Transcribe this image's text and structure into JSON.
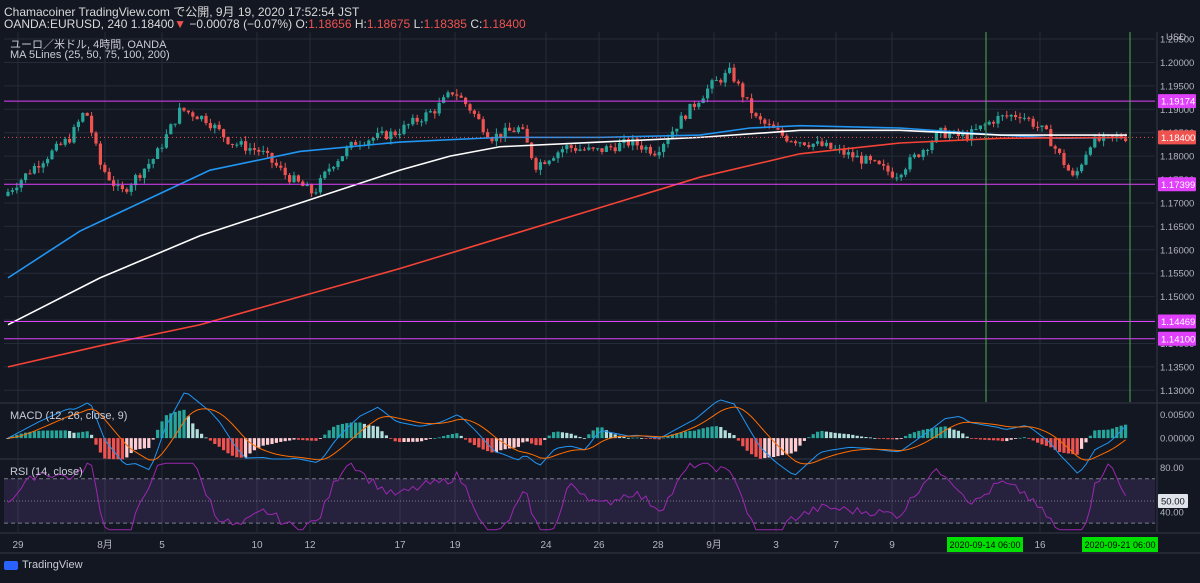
{
  "header": {
    "line1": "Chamacoiner TradingView.com で公開, 9月 19, 2020 17:52:54 JST",
    "symbol": "OANDA:EURUSD, 240",
    "last": "1.18400",
    "change": "−0.00078 (−0.07%)",
    "o_label": "O:",
    "o_value": "1.18656",
    "h_label": "H:",
    "h_value": "1.18675",
    "l_label": "L:",
    "l_value": "1.18385",
    "c_label": "C:",
    "c_value": "1.18400"
  },
  "legend": {
    "pair": "ユーロ／米ドル, 4時間, OANDA",
    "ma": "MA 5Lines (25, 50, 75, 100, 200)"
  },
  "macd": {
    "label": "MACD (12, 26, close, 9)"
  },
  "rsi": {
    "label": "RSI (14, close)"
  },
  "footer": {
    "brand": "TradingView"
  },
  "colors": {
    "background": "#131722",
    "grid": "#262b3a",
    "candle_up": "#26a69a",
    "candle_down": "#ef5350",
    "ma25": "#2196f3",
    "ma100": "#ffffff",
    "ma200": "#f44336",
    "hline": "#e040fb",
    "vline": "#4caf50",
    "rsi": "#9c27b0",
    "price_tag": "#e040fb"
  },
  "chart_data": {
    "type": "candlestick",
    "currency": "USD",
    "y_ticks": [
      "1.20500",
      "1.20000",
      "1.19500",
      "1.19000",
      "1.18500",
      "1.18000",
      "1.17500",
      "1.17000",
      "1.16500",
      "1.16000",
      "1.15500",
      "1.15000",
      "1.14500",
      "1.14000",
      "1.13500",
      "1.13000"
    ],
    "ylim": [
      1.1275,
      1.2065
    ],
    "x_ticks": [
      "29",
      "8月",
      "5",
      "10",
      "12",
      "17",
      "19",
      "24",
      "26",
      "28",
      "9月",
      "3",
      "7",
      "9",
      "16"
    ],
    "x_tick_pos": [
      18,
      105,
      162,
      257,
      310,
      400,
      455,
      546,
      599,
      658,
      714,
      776,
      836,
      892,
      1040
    ],
    "x_highlight": [
      {
        "label": "2020-09-14  06:00",
        "pos": 985
      },
      {
        "label": "2020-09-21  06:00",
        "pos": 1120
      }
    ],
    "horizontal_levels": [
      {
        "value": 1.19174,
        "label": "1.19174"
      },
      {
        "value": 1.17399,
        "label": "1.17399"
      },
      {
        "value": 1.14469,
        "label": "1.14469"
      },
      {
        "value": 1.141,
        "label": "1.14100"
      }
    ],
    "last_price": {
      "value": 1.184,
      "label": "1.18400"
    },
    "vertical_markers": [
      986,
      1130
    ],
    "anchors": [
      [
        8,
        1.1715
      ],
      [
        40,
        1.178
      ],
      [
        75,
        1.184
      ],
      [
        90,
        1.19
      ],
      [
        105,
        1.178
      ],
      [
        125,
        1.172
      ],
      [
        160,
        1.18
      ],
      [
        185,
        1.19
      ],
      [
        210,
        1.188
      ],
      [
        235,
        1.183
      ],
      [
        265,
        1.181
      ],
      [
        290,
        1.176
      ],
      [
        318,
        1.172
      ],
      [
        335,
        1.178
      ],
      [
        360,
        1.183
      ],
      [
        400,
        1.185
      ],
      [
        440,
        1.19
      ],
      [
        458,
        1.194
      ],
      [
        475,
        1.19
      ],
      [
        495,
        1.184
      ],
      [
        525,
        1.186
      ],
      [
        540,
        1.178
      ],
      [
        570,
        1.182
      ],
      [
        600,
        1.181
      ],
      [
        635,
        1.183
      ],
      [
        660,
        1.181
      ],
      [
        690,
        1.189
      ],
      [
        715,
        1.195
      ],
      [
        735,
        1.198
      ],
      [
        760,
        1.188
      ],
      [
        790,
        1.184
      ],
      [
        830,
        1.182
      ],
      [
        870,
        1.179
      ],
      [
        900,
        1.176
      ],
      [
        925,
        1.181
      ],
      [
        945,
        1.185
      ],
      [
        970,
        1.184
      ],
      [
        1000,
        1.188
      ],
      [
        1025,
        1.189
      ],
      [
        1050,
        1.185
      ],
      [
        1070,
        1.178
      ],
      [
        1078,
        1.175
      ],
      [
        1095,
        1.183
      ],
      [
        1125,
        1.1841
      ]
    ],
    "ma_series": [
      {
        "name": "MA 25",
        "points": [
          [
            8,
            1.154
          ],
          [
            80,
            1.164
          ],
          [
            150,
            1.171
          ],
          [
            210,
            1.177
          ],
          [
            300,
            1.181
          ],
          [
            400,
            1.183
          ],
          [
            500,
            1.184
          ],
          [
            600,
            1.184
          ],
          [
            700,
            1.1845
          ],
          [
            750,
            1.186
          ],
          [
            800,
            1.1865
          ],
          [
            900,
            1.186
          ],
          [
            1000,
            1.1845
          ],
          [
            1060,
            1.1838
          ],
          [
            1127,
            1.184
          ]
        ]
      },
      {
        "name": "MA 100",
        "points": [
          [
            8,
            1.144
          ],
          [
            100,
            1.154
          ],
          [
            200,
            1.163
          ],
          [
            300,
            1.17
          ],
          [
            400,
            1.177
          ],
          [
            450,
            1.18
          ],
          [
            500,
            1.182
          ],
          [
            600,
            1.183
          ],
          [
            700,
            1.184
          ],
          [
            800,
            1.1855
          ],
          [
            900,
            1.1855
          ],
          [
            1000,
            1.1845
          ],
          [
            1127,
            1.1845
          ]
        ]
      },
      {
        "name": "MA 200",
        "points": [
          [
            8,
            1.135
          ],
          [
            100,
            1.1395
          ],
          [
            200,
            1.144
          ],
          [
            300,
            1.15
          ],
          [
            400,
            1.156
          ],
          [
            500,
            1.1625
          ],
          [
            600,
            1.169
          ],
          [
            700,
            1.1755
          ],
          [
            800,
            1.1805
          ],
          [
            900,
            1.1828
          ],
          [
            1000,
            1.1838
          ],
          [
            1127,
            1.184
          ]
        ]
      }
    ],
    "macd": {
      "y_ticks": [
        "0.00500",
        "0.00000"
      ],
      "ylim": [
        -0.0042,
        0.007
      ]
    },
    "rsi": {
      "y_ticks": [
        "80.00",
        "50.00",
        "40.00"
      ],
      "bands": [
        70,
        30
      ],
      "midline": 50,
      "ylim": [
        22,
        86
      ],
      "last": "50.00"
    }
  }
}
